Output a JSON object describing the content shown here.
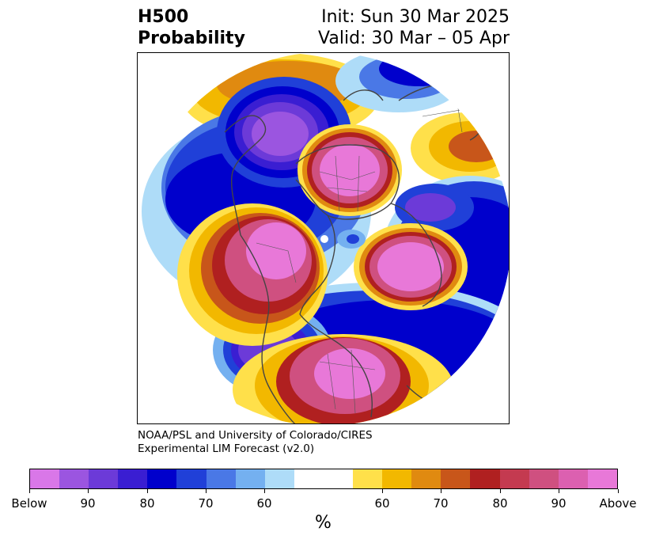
{
  "header": {
    "title_line1": "H500",
    "title_line2": "Probability",
    "init": "Init: Sun 30 Mar 2025",
    "valid": "Valid: 30 Mar – 05 Apr"
  },
  "credit": {
    "line1": "NOAA/PSL and University of Colorado/CIRES",
    "line2": "Experimental LIM Forecast (v2.0)"
  },
  "colorbar": {
    "unit": "%",
    "colors": [
      "#d977e8",
      "#9b55e0",
      "#6c3ad8",
      "#3a1ed2",
      "#0000cc",
      "#2040d8",
      "#4a78e6",
      "#74b0f0",
      "#aedcf8",
      "#ffffff",
      "#ffffff",
      "#ffe04a",
      "#f2b800",
      "#e08a10",
      "#c8561a",
      "#b02020",
      "#c43a50",
      "#cf5080",
      "#dc60b0",
      "#e878d8"
    ],
    "tick_labels": [
      "Below",
      "90",
      "80",
      "70",
      "60",
      "60",
      "70",
      "80",
      "90",
      "Above"
    ]
  },
  "map": {
    "projection": "north-polar-stereographic",
    "field": "500-hPa height probability",
    "legend_colors": {
      "below_strong": "#8a4ad8",
      "below_mid": "#0000cc",
      "below_weak": "#aedcf8",
      "above_weak": "#ffe04a",
      "above_mid": "#c8561a",
      "above_strong": "#e878d8"
    }
  }
}
